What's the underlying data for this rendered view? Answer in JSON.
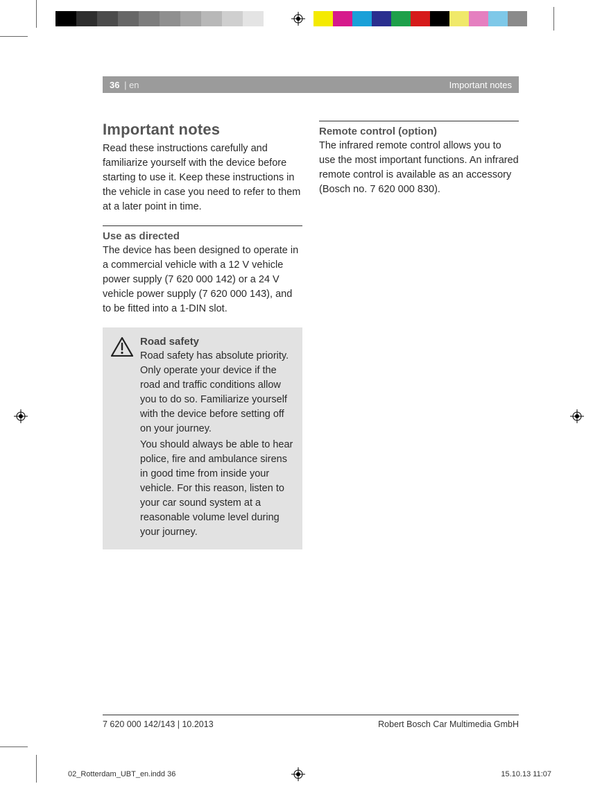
{
  "colorbars": {
    "grays": [
      {
        "color": "#000000",
        "w": 30
      },
      {
        "color": "#2e2e2e",
        "w": 30
      },
      {
        "color": "#4b4b4b",
        "w": 30
      },
      {
        "color": "#676767",
        "w": 30
      },
      {
        "color": "#7d7d7d",
        "w": 30
      },
      {
        "color": "#8f8f8f",
        "w": 30
      },
      {
        "color": "#a4a4a4",
        "w": 30
      },
      {
        "color": "#b8b8b8",
        "w": 30
      },
      {
        "color": "#cfcfcf",
        "w": 30
      },
      {
        "color": "#e4e4e4",
        "w": 30
      }
    ],
    "colors": [
      {
        "color": "#f4ea00",
        "w": 28
      },
      {
        "color": "#d61a8c",
        "w": 28
      },
      {
        "color": "#1aa0d8",
        "w": 28
      },
      {
        "color": "#2a2f8f",
        "w": 28
      },
      {
        "color": "#1ea04a",
        "w": 28
      },
      {
        "color": "#d61a1a",
        "w": 28
      },
      {
        "color": "#000000",
        "w": 28
      },
      {
        "color": "#f0e96a",
        "w": 28
      },
      {
        "color": "#e57fc0",
        "w": 28
      },
      {
        "color": "#7ec8e8",
        "w": 28
      },
      {
        "color": "#8a8a8a",
        "w": 28
      }
    ]
  },
  "header": {
    "page_num": "36",
    "lang": "en",
    "section": "Important notes"
  },
  "left_col": {
    "title": "Important notes",
    "intro": "Read these instructions carefully and familiar­ize yourself with the device before starting to use it. Keep these instructions in the vehicle in case you need to refer to them at a later point in time.",
    "sub1_title": "Use as directed",
    "sub1_body": "The device has been designed to operate in a commercial vehicle with a 12 V vehicle power supply (7 620 000 142) or a 24 V vehicle power supply (7 620 000 143), and to be fitted into a 1-DIN slot.",
    "warning_title": "Road safety",
    "warning_p1": "Road safety has absolute priority. Only operate your device if the road and traffic conditions allow you to do so. Familiarize yourself with the device before setting off on your journey.",
    "warning_p2": "You should always be able to hear police, fire and ambulance sirens in good time from inside your vehicle. For this reason, listen to your car sound system at a reasonable volume level during your journey."
  },
  "right_col": {
    "sub1_title": "Remote control (option)",
    "sub1_body": "The infrared remote control allows you to use the most important functions. An infrared remote control is available as an accessory (Bosch no. 7 620 000 830)."
  },
  "footer": {
    "left": "7 620 000 142/143 | 10.2013",
    "right": "Robert Bosch Car Multimedia GmbH"
  },
  "slug": {
    "file": "02_Rotterdam_UBT_en.indd   36",
    "date": "15.10.13   11:07"
  }
}
